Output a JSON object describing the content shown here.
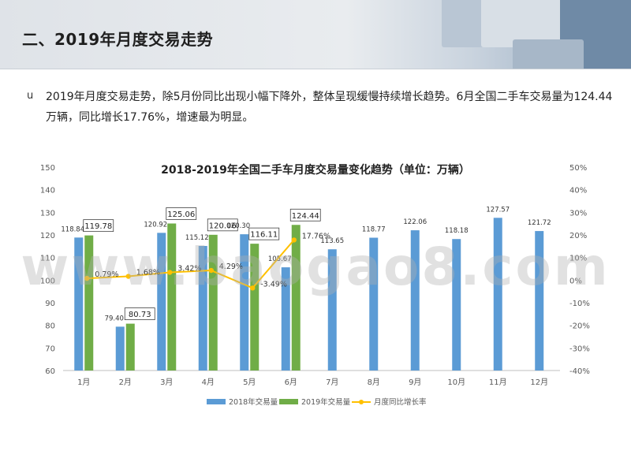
{
  "header": {
    "title": "二、2019年月度交易走势"
  },
  "summary": {
    "bullet": "u",
    "text": "2019年月度交易走势，除5月份同比出现小幅下降外，整体呈现缓慢持续增长趋势。6月全国二手车交易量为124.44万辆，同比增长17.76%，增速最为明显。"
  },
  "watermark": "www.baogao8.com",
  "colors": {
    "series_2018": "#5b9bd5",
    "series_2019": "#70ad47",
    "growth_line": "#ffc000",
    "axis_text": "#595959",
    "gridline": "#d9d9d9"
  },
  "chart_data": {
    "type": "bar",
    "title": "2018-2019年全国二手车月度交易量变化趋势（单位：万辆）",
    "categories": [
      "1月",
      "2月",
      "3月",
      "4月",
      "5月",
      "6月",
      "7月",
      "8月",
      "9月",
      "10月",
      "11月",
      "12月"
    ],
    "series": [
      {
        "name": "2018年交易量",
        "type": "bar",
        "axis": "left",
        "values": [
          118.84,
          79.4,
          120.92,
          115.12,
          120.3,
          105.67,
          113.65,
          118.77,
          122.06,
          118.18,
          127.57,
          121.72
        ],
        "labels": [
          "118.84",
          "79.40",
          "120.92",
          "115.12",
          "120.30",
          "105.67",
          "113.65",
          "118.77",
          "122.06",
          "118.18",
          "127.57",
          "121.72"
        ]
      },
      {
        "name": "2019年交易量",
        "type": "bar",
        "axis": "left",
        "values": [
          119.78,
          80.73,
          125.06,
          120.06,
          116.11,
          124.44,
          null,
          null,
          null,
          null,
          null,
          null
        ],
        "labels": [
          "119.78",
          "80.73",
          "125.06",
          "120.06",
          "116.11",
          "124.44",
          "",
          "",
          "",
          "",
          "",
          ""
        ]
      },
      {
        "name": "月度同比增长率",
        "type": "line",
        "axis": "right",
        "values": [
          0.79,
          1.68,
          3.42,
          4.29,
          -3.49,
          17.76,
          null,
          null,
          null,
          null,
          null,
          null
        ],
        "labels": [
          "0.79%",
          "1.68%",
          "3.42%",
          "4.29%",
          "-3.49%",
          "17.76%",
          "",
          "",
          "",
          "",
          "",
          ""
        ]
      }
    ],
    "y_left": {
      "min": 60,
      "max": 150,
      "step": 10,
      "ticks": [
        "60",
        "70",
        "80",
        "90",
        "100",
        "110",
        "120",
        "130",
        "140",
        "150"
      ]
    },
    "y_right": {
      "min": -40,
      "max": 50,
      "step": 10,
      "ticks": [
        "-40%",
        "-30%",
        "-20%",
        "-10%",
        "0%",
        "10%",
        "20%",
        "30%",
        "40%",
        "50%"
      ]
    },
    "grid": false,
    "legend": "bottom"
  }
}
